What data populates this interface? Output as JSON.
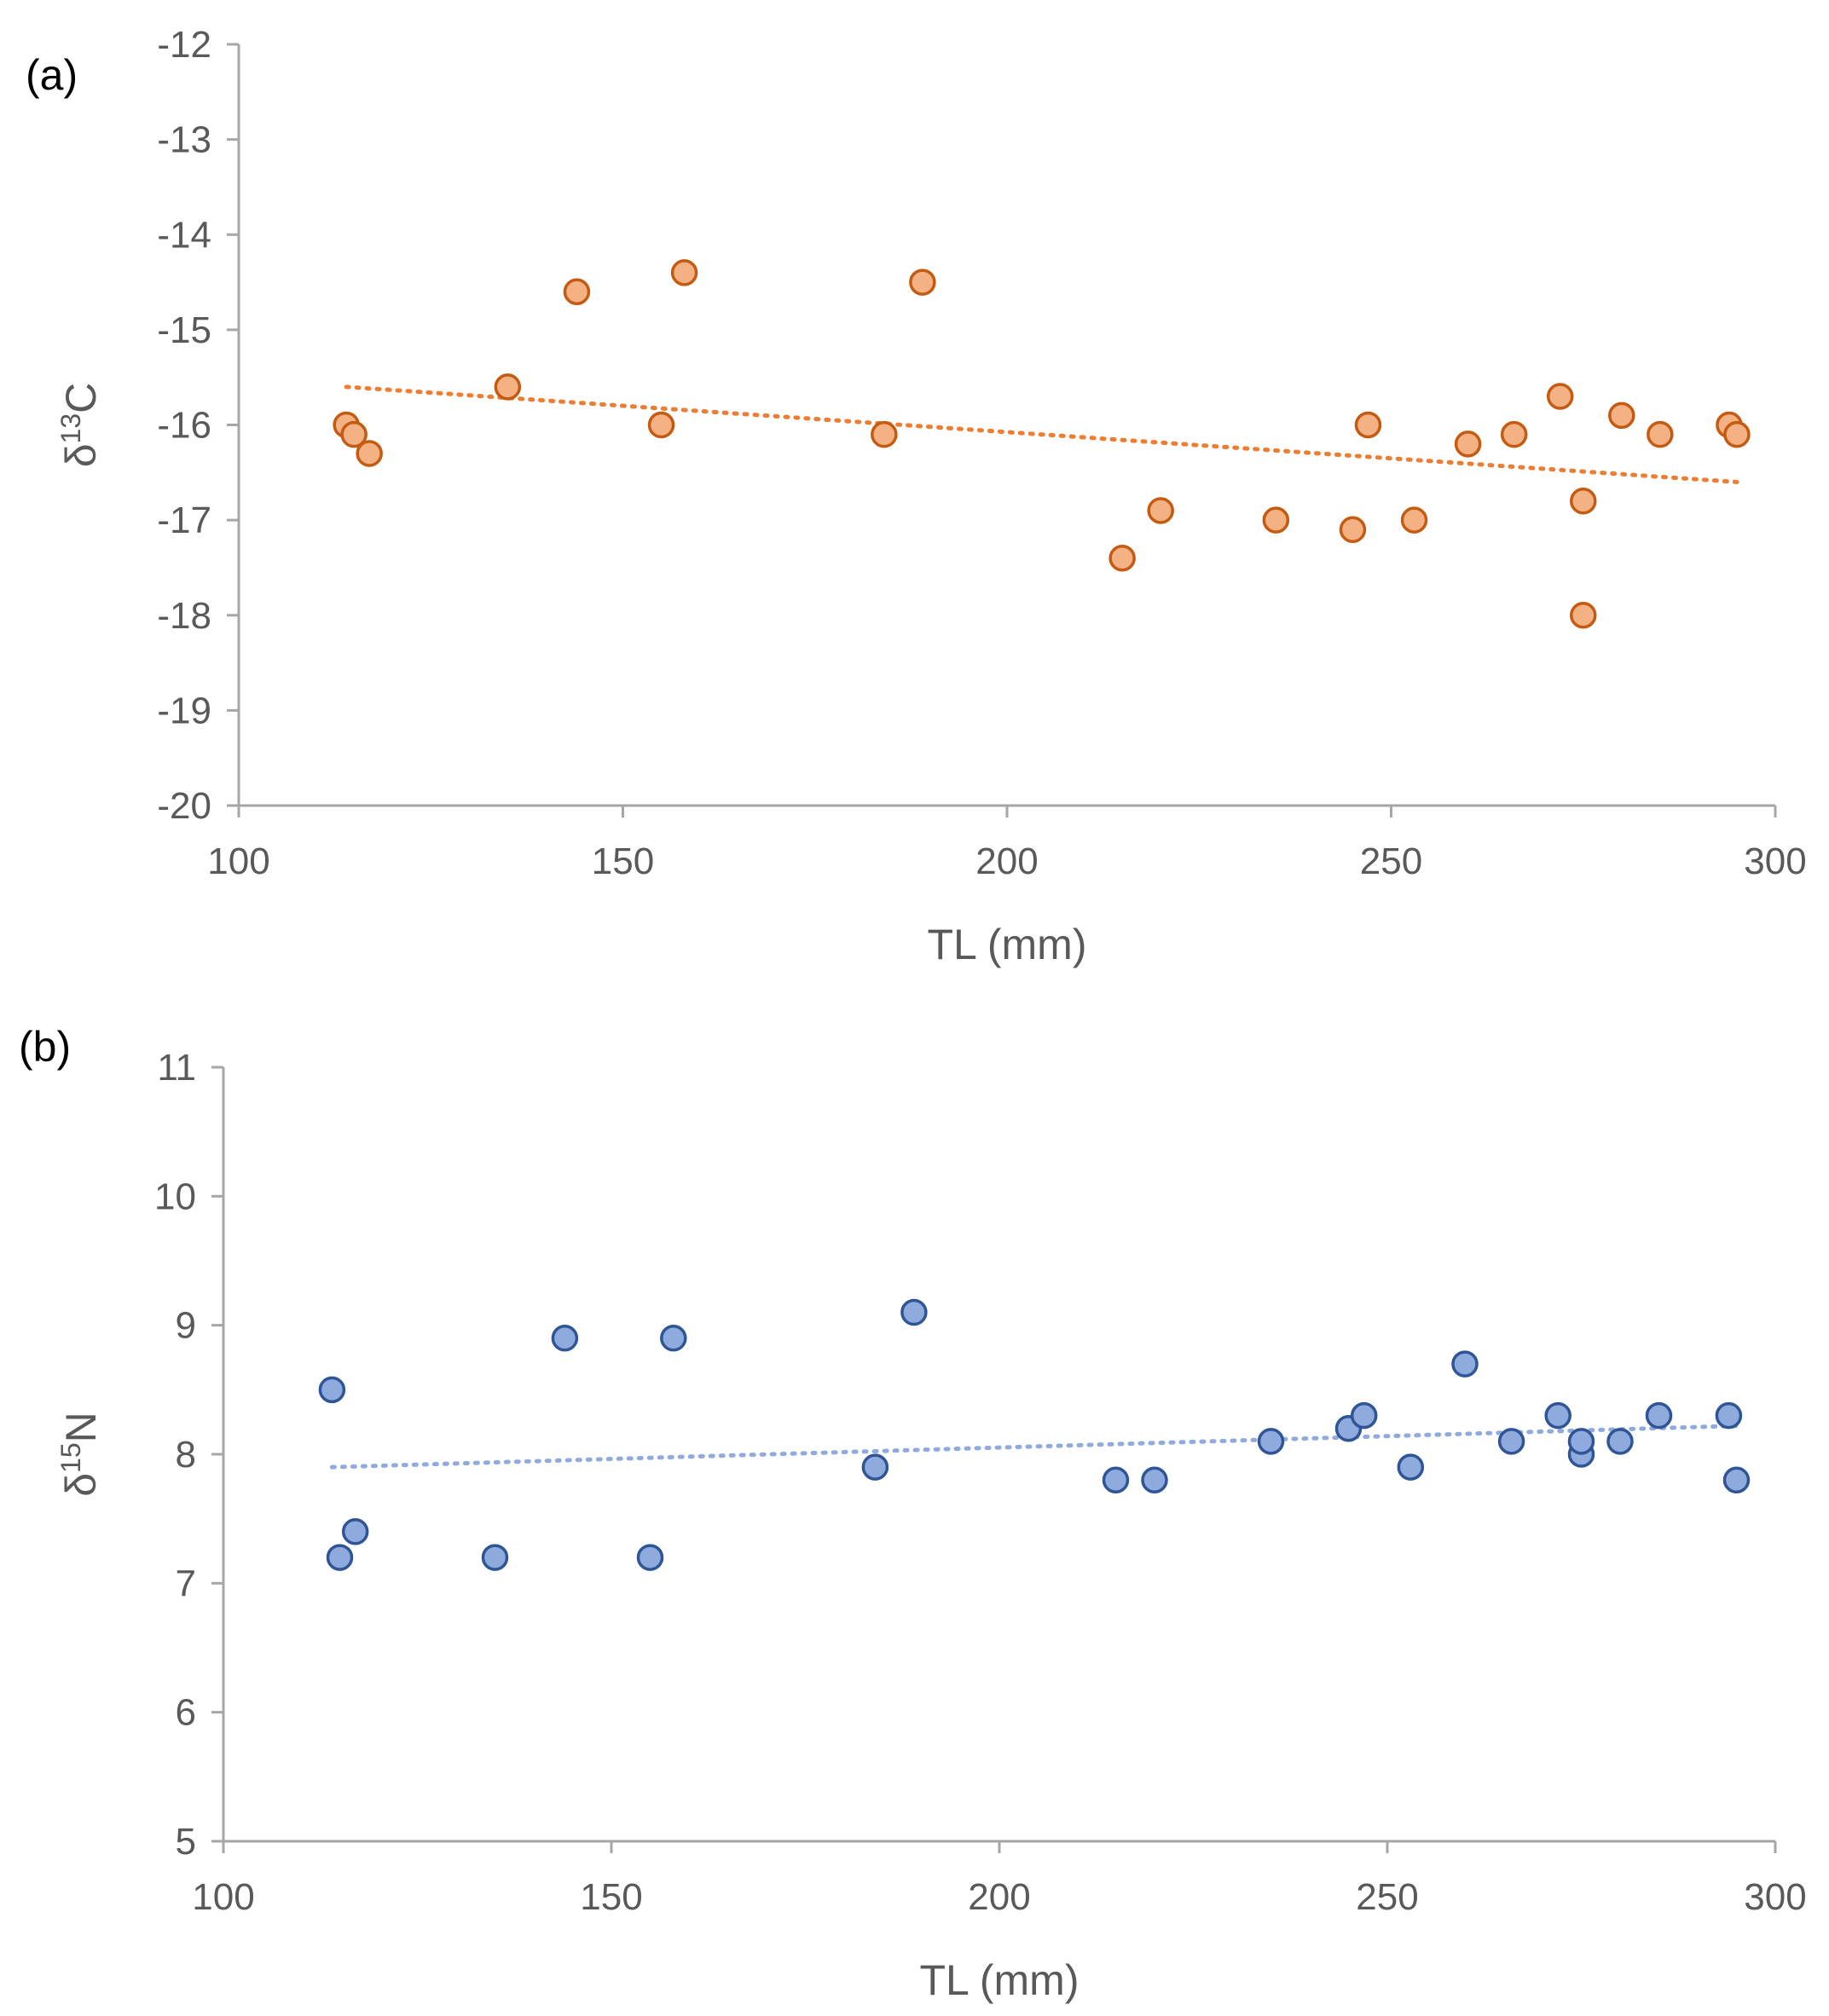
{
  "chart_data": [
    {
      "type": "scatter",
      "panel_label": "(a)",
      "xlabel": "TL (mm)",
      "ylabel": {
        "prefix": "δ",
        "sup": "13",
        "suffix": "C"
      },
      "xlim": [
        100,
        300
      ],
      "ylim": [
        -20,
        -12
      ],
      "xticks": [
        100,
        150,
        200,
        250,
        300
      ],
      "yticks": [
        -20,
        -19,
        -18,
        -17,
        -16,
        -15,
        -14,
        -13,
        -12
      ],
      "grid": false,
      "marker_fill": "#F4B183",
      "marker_edge": "#C55A11",
      "trendline_color": "#ED7D31",
      "trendline": {
        "style": "dotted",
        "x": [
          114,
          295
        ],
        "y": [
          -15.6,
          -16.6
        ]
      },
      "points": {
        "x": [
          114,
          115,
          117,
          135,
          144,
          155,
          158,
          184,
          189,
          215,
          220,
          235,
          245,
          247,
          253,
          260,
          266,
          272,
          275,
          275,
          280,
          285,
          294,
          295
        ],
        "y": [
          -16.0,
          -16.1,
          -16.3,
          -15.6,
          -14.6,
          -16.0,
          -14.4,
          -16.1,
          -14.5,
          -17.4,
          -16.9,
          -17.0,
          -17.1,
          -16.0,
          -17.0,
          -16.2,
          -16.1,
          -15.7,
          -16.8,
          -18.0,
          -15.9,
          -16.1,
          -16.0,
          -16.1
        ]
      }
    },
    {
      "type": "scatter",
      "panel_label": "(b)",
      "xlabel": "TL (mm)",
      "ylabel": {
        "prefix": "δ",
        "sup": "15",
        "suffix": "N"
      },
      "xlim": [
        100,
        300
      ],
      "ylim": [
        5,
        11
      ],
      "xticks": [
        100,
        150,
        200,
        250,
        300
      ],
      "yticks": [
        5,
        6,
        7,
        8,
        9,
        10,
        11
      ],
      "grid": false,
      "marker_fill": "#8FAADC",
      "marker_edge": "#2F5597",
      "trendline_color": "#8FAADC",
      "trendline": {
        "style": "dotted",
        "x": [
          114,
          295
        ],
        "y": [
          7.9,
          8.22
        ]
      },
      "points": {
        "x": [
          114,
          115,
          117,
          135,
          144,
          155,
          158,
          184,
          189,
          215,
          220,
          235,
          245,
          247,
          253,
          260,
          266,
          272,
          275,
          275,
          280,
          285,
          294,
          295
        ],
        "y": [
          8.5,
          7.2,
          7.4,
          7.2,
          8.9,
          7.2,
          8.9,
          7.9,
          9.1,
          7.8,
          7.8,
          8.1,
          8.2,
          8.3,
          7.9,
          8.7,
          8.1,
          8.3,
          8.0,
          8.1,
          8.1,
          8.3,
          8.3,
          7.8
        ]
      }
    }
  ]
}
